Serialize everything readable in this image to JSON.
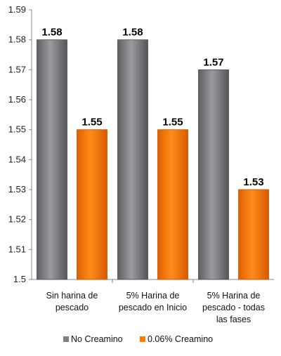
{
  "chart_data": {
    "type": "bar",
    "categories": [
      [
        "Sin harina de",
        "pescado"
      ],
      [
        "5% Harina de",
        "pescado en Inicio"
      ],
      [
        "5% Harina de",
        "pescado - todas",
        "las fases"
      ]
    ],
    "series": [
      {
        "name": "No Creamino",
        "values": [
          1.58,
          1.58,
          1.57
        ],
        "color": "#7f8084"
      },
      {
        "name": "0.06% Creamino",
        "values": [
          1.55,
          1.55,
          1.53
        ],
        "color": "#ff7a00"
      }
    ],
    "data_labels": [
      [
        "1.58",
        "1.58",
        "1.57"
      ],
      [
        "1.55",
        "1.55",
        "1.53"
      ]
    ],
    "ylim": [
      1.5,
      1.59
    ],
    "yticks": [
      "1.5",
      "1.51",
      "1.52",
      "1.53",
      "1.54",
      "1.55",
      "1.56",
      "1.57",
      "1.58",
      "1.59"
    ],
    "grid": false,
    "legend_position": "bottom"
  }
}
